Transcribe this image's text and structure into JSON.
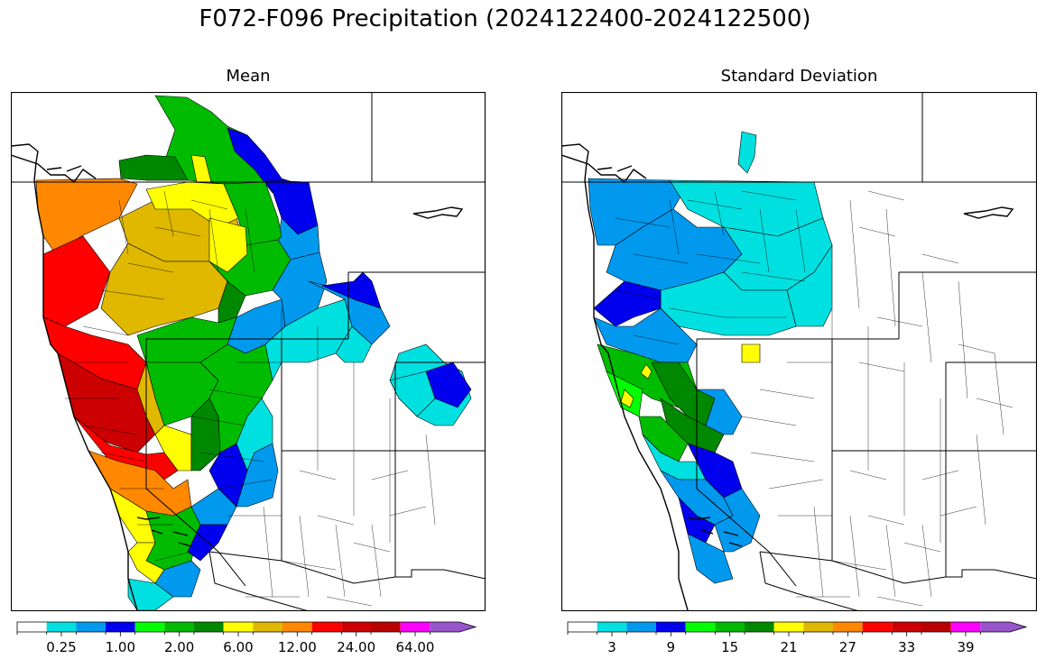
{
  "figure": {
    "title": "F072-F096 Precipitation (2024122400-2024122500)"
  },
  "panels": [
    {
      "title": "Mean",
      "colorbar": {
        "colors": [
          "#ffffff",
          "#00e0e0",
          "#0099ee",
          "#0000ee",
          "#00ff00",
          "#00bb00",
          "#008800",
          "#ffff00",
          "#e0b800",
          "#ff8800",
          "#ff0000",
          "#cc0000",
          "#bb0000",
          "#ff00ff",
          "#9955cc"
        ],
        "tick_labels": [
          "0.25",
          "1.00",
          "2.00",
          "6.00",
          "12.00",
          "24.00",
          "64.00"
        ],
        "extend": "max"
      }
    },
    {
      "title": "Standard Deviation",
      "colorbar": {
        "colors": [
          "#ffffff",
          "#00e0e0",
          "#0099ee",
          "#0000ee",
          "#00ff00",
          "#00bb00",
          "#008800",
          "#ffff00",
          "#e0b800",
          "#ff8800",
          "#ff0000",
          "#cc0000",
          "#bb0000",
          "#ff00ff",
          "#9955cc"
        ],
        "tick_labels": [
          "3",
          "9",
          "15",
          "21",
          "27",
          "33",
          "39"
        ],
        "extend": "max"
      }
    }
  ]
}
